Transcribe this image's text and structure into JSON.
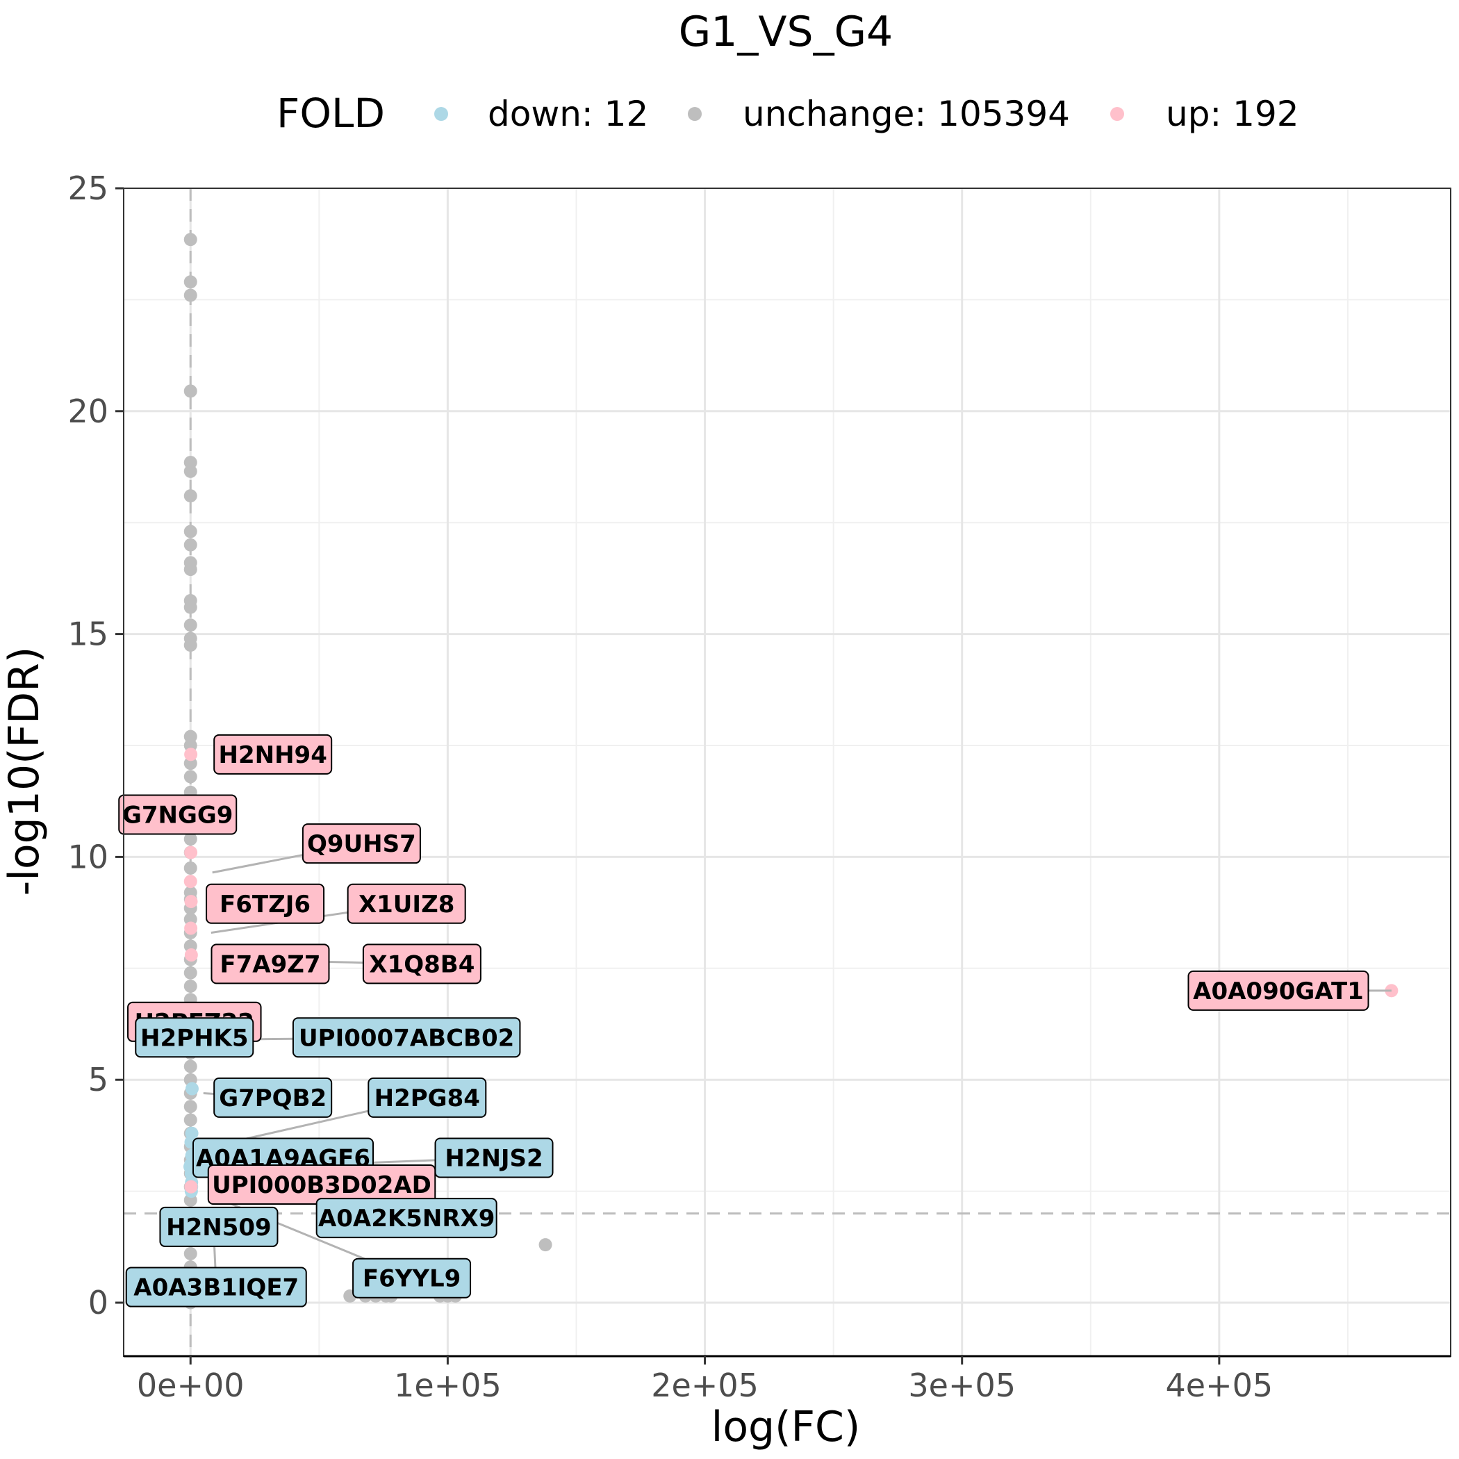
{
  "chart_data": {
    "type": "scatter",
    "title": "G1_VS_G4",
    "xlabel": "log(FC)",
    "ylabel": "-log10(FDR)",
    "xlim": [
      -26000,
      490000
    ],
    "ylim": [
      -1.2,
      25.0
    ],
    "x_ticks": [
      {
        "value": 0,
        "label": "0e+00"
      },
      {
        "value": 100000,
        "label": "1e+05"
      },
      {
        "value": 200000,
        "label": "2e+05"
      },
      {
        "value": 300000,
        "label": "3e+05"
      },
      {
        "value": 400000,
        "label": "4e+05"
      }
    ],
    "y_ticks": [
      {
        "value": 0,
        "label": "0"
      },
      {
        "value": 5,
        "label": "5"
      },
      {
        "value": 10,
        "label": "10"
      },
      {
        "value": 15,
        "label": "15"
      },
      {
        "value": 20,
        "label": "20"
      },
      {
        "value": 25,
        "label": "25"
      }
    ],
    "grid": true,
    "thresholds": {
      "x": 0,
      "y": 2
    },
    "legend": {
      "title": "FOLD",
      "position": "top",
      "entries": [
        {
          "key": "down",
          "label": "down: 12",
          "color": "#add8e6"
        },
        {
          "key": "unchange",
          "label": "unchange: 105394",
          "color": "#bebebe"
        },
        {
          "key": "up",
          "label": "up: 192",
          "color": "#ffc0cb"
        }
      ]
    },
    "series": [
      {
        "name": "down: 12",
        "color": "#add8e6",
        "points": [
          [
            -200,
            3.05
          ],
          [
            300,
            2.9
          ],
          [
            500,
            3.3
          ],
          [
            400,
            2.7
          ],
          [
            600,
            4.8
          ],
          [
            300,
            5.9
          ],
          [
            200,
            3.6
          ],
          [
            100,
            3.1
          ],
          [
            400,
            2.6
          ],
          [
            200,
            1.9
          ],
          [
            300,
            2.5
          ],
          [
            500,
            3.8
          ]
        ]
      },
      {
        "name": "unchange: 105394",
        "color": "#bebebe",
        "points": [
          [
            0,
            23.85
          ],
          [
            0,
            22.9
          ],
          [
            0,
            22.6
          ],
          [
            0,
            20.45
          ],
          [
            0,
            18.85
          ],
          [
            0,
            18.65
          ],
          [
            0,
            18.1
          ],
          [
            0,
            17.3
          ],
          [
            0,
            17.0
          ],
          [
            0,
            16.6
          ],
          [
            0,
            16.45
          ],
          [
            0,
            15.75
          ],
          [
            0,
            15.6
          ],
          [
            0,
            15.2
          ],
          [
            0,
            14.9
          ],
          [
            0,
            14.75
          ],
          [
            0,
            12.7
          ],
          [
            0,
            12.5
          ],
          [
            0,
            12.1
          ],
          [
            0,
            11.8
          ],
          [
            0,
            11.45
          ],
          [
            0,
            10.4
          ],
          [
            0,
            10.1
          ],
          [
            0,
            9.75
          ],
          [
            0,
            9.2
          ],
          [
            0,
            9.05
          ],
          [
            0,
            8.85
          ],
          [
            0,
            8.6
          ],
          [
            0,
            8.3
          ],
          [
            0,
            8.0
          ],
          [
            0,
            7.7
          ],
          [
            0,
            7.4
          ],
          [
            0,
            7.1
          ],
          [
            0,
            6.8
          ],
          [
            0,
            6.5
          ],
          [
            0,
            6.2
          ],
          [
            0,
            5.9
          ],
          [
            0,
            5.6
          ],
          [
            0,
            5.3
          ],
          [
            0,
            5.0
          ],
          [
            0,
            4.7
          ],
          [
            0,
            4.4
          ],
          [
            0,
            4.1
          ],
          [
            0,
            3.8
          ],
          [
            0,
            3.5
          ],
          [
            0,
            3.2
          ],
          [
            0,
            2.9
          ],
          [
            0,
            2.6
          ],
          [
            0,
            2.3
          ],
          [
            0,
            2.0
          ],
          [
            0,
            1.7
          ],
          [
            0,
            1.4
          ],
          [
            0,
            1.1
          ],
          [
            0,
            0.8
          ],
          [
            0,
            0.5
          ],
          [
            0,
            0.2
          ],
          [
            0,
            0.0
          ],
          [
            138000,
            1.3
          ],
          [
            62000,
            0.15
          ],
          [
            68000,
            0.15
          ],
          [
            72000,
            0.15
          ],
          [
            76000,
            0.15
          ],
          [
            78000,
            0.15
          ],
          [
            97000,
            0.15
          ],
          [
            100000,
            0.15
          ],
          [
            103000,
            0.15
          ]
        ]
      },
      {
        "name": "up: 192",
        "color": "#ffc0cb",
        "points": [
          [
            467000,
            7.0
          ],
          [
            100,
            10.1
          ],
          [
            0,
            9.45
          ],
          [
            200,
            9.0
          ],
          [
            100,
            8.4
          ],
          [
            300,
            7.8
          ],
          [
            100,
            6.4
          ],
          [
            200,
            2.6
          ],
          [
            300,
            11.2
          ],
          [
            100,
            12.3
          ]
        ]
      }
    ],
    "labels": [
      {
        "text": "H2NH94",
        "group": "up",
        "x": 5500,
        "y": 12.3,
        "tx": 32000,
        "ty": 12.3
      },
      {
        "text": "G7NGG9",
        "group": "up",
        "x": 300,
        "y": 11.2,
        "tx": -5000,
        "ty": 10.95
      },
      {
        "text": "Q9UHS7",
        "group": "up",
        "x": 8500,
        "y": 9.65,
        "tx": 66500,
        "ty": 10.3
      },
      {
        "text": "F6TZJ6",
        "group": "up",
        "x": 7500,
        "y": 8.95,
        "tx": 29000,
        "ty": 8.95
      },
      {
        "text": "X1UIZ8",
        "group": "up",
        "x": 8000,
        "y": 8.3,
        "tx": 84000,
        "ty": 8.95
      },
      {
        "text": "F7A9Z7",
        "group": "up",
        "x": 7500,
        "y": 7.6,
        "tx": 31000,
        "ty": 7.6
      },
      {
        "text": "X1Q8B4",
        "group": "up",
        "x": 8000,
        "y": 7.7,
        "tx": 90000,
        "ty": 7.6
      },
      {
        "text": "A0A090GAT1",
        "group": "up",
        "x": 467000,
        "y": 7.0,
        "tx": 423000,
        "ty": 7.0
      },
      {
        "text": "H2PEZ22",
        "group": "up",
        "x": 300,
        "y": 6.4,
        "tx": 1500,
        "ty": 6.3
      },
      {
        "text": "H2PHK5",
        "group": "down",
        "x": 300,
        "y": 5.9,
        "tx": 1500,
        "ty": 5.95
      },
      {
        "text": "UPI0007ABCB02",
        "group": "down",
        "x": 11000,
        "y": 5.9,
        "tx": 84000,
        "ty": 5.95
      },
      {
        "text": "G7PQB2",
        "group": "down",
        "x": 5000,
        "y": 4.7,
        "tx": 32000,
        "ty": 4.6
      },
      {
        "text": "H2PG84",
        "group": "down",
        "x": 8000,
        "y": 3.5,
        "tx": 92000,
        "ty": 4.6
      },
      {
        "text": "A0A1A9AGF6",
        "group": "down",
        "x": 7000,
        "y": 3.2,
        "tx": 36000,
        "ty": 3.25
      },
      {
        "text": "H2NJS2",
        "group": "down",
        "x": 9000,
        "y": 3.0,
        "tx": 118000,
        "ty": 3.25
      },
      {
        "text": "UPI000B3D02AD",
        "group": "up",
        "x": 8000,
        "y": 2.55,
        "tx": 51000,
        "ty": 2.65
      },
      {
        "text": "A0A2K5NRX9",
        "group": "down",
        "x": 8000,
        "y": 2.6,
        "tx": 84000,
        "ty": 1.9
      },
      {
        "text": "H2N509",
        "group": "down",
        "x": 9000,
        "y": 2.2,
        "tx": 11000,
        "ty": 1.7
      },
      {
        "text": "F6YYL9",
        "group": "down",
        "x": 8000,
        "y": 2.4,
        "tx": 86000,
        "ty": 0.55
      },
      {
        "text": "A0A3B1IQE7",
        "group": "down",
        "x": 9000,
        "y": 1.6,
        "tx": 10000,
        "ty": 0.35
      }
    ]
  }
}
